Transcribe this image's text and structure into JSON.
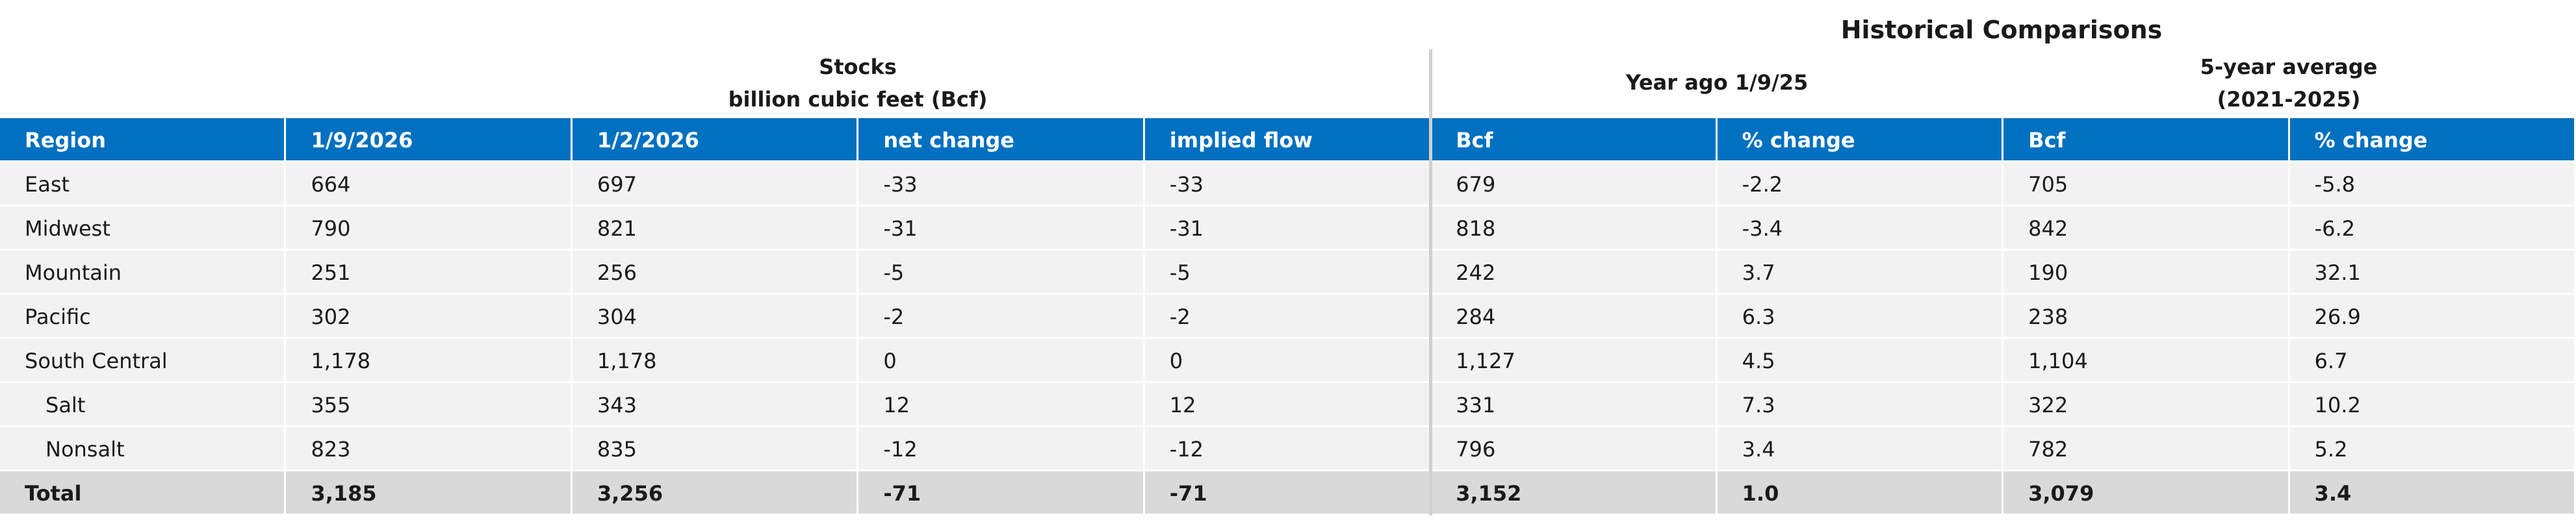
{
  "header": {
    "title": "Historical Comparisons",
    "stocks_title": "Stocks",
    "stocks_subtitle": "billion cubic feet (Bcf)",
    "year_ago": "Year ago 1/9/25",
    "five_year": "5-year average",
    "five_year_period": "(2021-2025)"
  },
  "table": {
    "columns": [
      "Region",
      "1/9/2026",
      "1/2/2026",
      "net change",
      "implied flow",
      "Bcf",
      "% change",
      "Bcf",
      "% change"
    ],
    "rows": [
      [
        "East",
        "664",
        "697",
        "-33",
        "-33",
        "679",
        "-2.2",
        "705",
        "-5.8"
      ],
      [
        "Midwest",
        "790",
        "821",
        "-31",
        "-31",
        "818",
        "-3.4",
        "842",
        "-6.2"
      ],
      [
        "Mountain",
        "251",
        "256",
        "-5",
        "-5",
        "242",
        "3.7",
        "190",
        "32.1"
      ],
      [
        "Pacific",
        "302",
        "304",
        "-2",
        "-2",
        "284",
        "6.3",
        "238",
        "26.9"
      ],
      [
        "South Central",
        "1,178",
        "1,178",
        "0",
        "0",
        "1,127",
        "4.5",
        "1,104",
        "6.7"
      ],
      [
        "Salt",
        "355",
        "343",
        "12",
        "12",
        "331",
        "7.3",
        "322",
        "10.2"
      ],
      [
        "Nonsalt",
        "823",
        "835",
        "-12",
        "-12",
        "796",
        "3.4",
        "782",
        "5.2"
      ],
      [
        "Total",
        "3,185",
        "3,256",
        "-71",
        "-71",
        "3,152",
        "1.0",
        "3,079",
        "3.4"
      ]
    ]
  }
}
